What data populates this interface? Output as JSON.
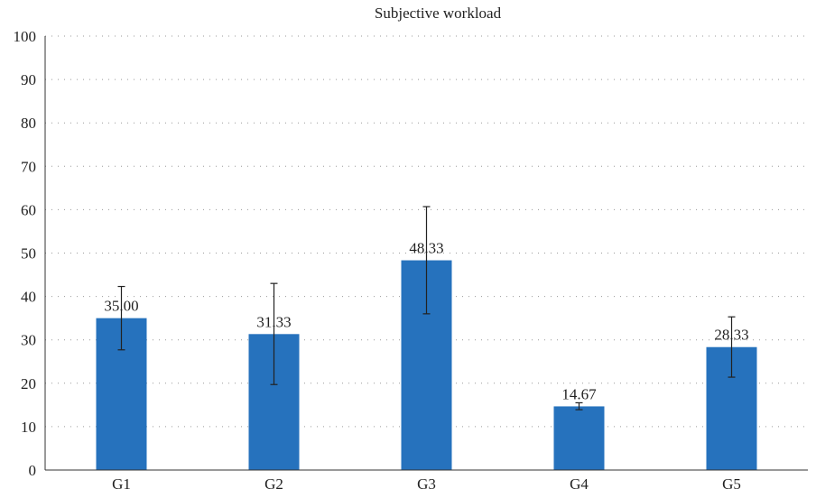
{
  "chart_data": {
    "type": "bar",
    "title": "Subjective workload",
    "xlabel": "",
    "ylabel": "",
    "categories": [
      "G1",
      "G2",
      "G3",
      "G4",
      "G5"
    ],
    "values": [
      35.0,
      31.33,
      48.33,
      14.67,
      28.33
    ],
    "value_labels": [
      "35.00",
      "31.33",
      "48.33",
      "14.67",
      "28.33"
    ],
    "error_low": [
      27.7,
      19.7,
      36.0,
      13.9,
      21.4
    ],
    "error_high": [
      42.3,
      43.0,
      60.7,
      15.5,
      35.3
    ],
    "ylim": [
      0,
      100
    ],
    "yticks": [
      0,
      10,
      20,
      30,
      40,
      50,
      60,
      70,
      80,
      90,
      100
    ],
    "ytick_labels": [
      "0",
      "10",
      "20",
      "30",
      "40",
      "50",
      "60",
      "70",
      "80",
      "90",
      "100"
    ],
    "grid": "horizontal dotted",
    "legend": "none",
    "bar_color": "#2672bd"
  }
}
